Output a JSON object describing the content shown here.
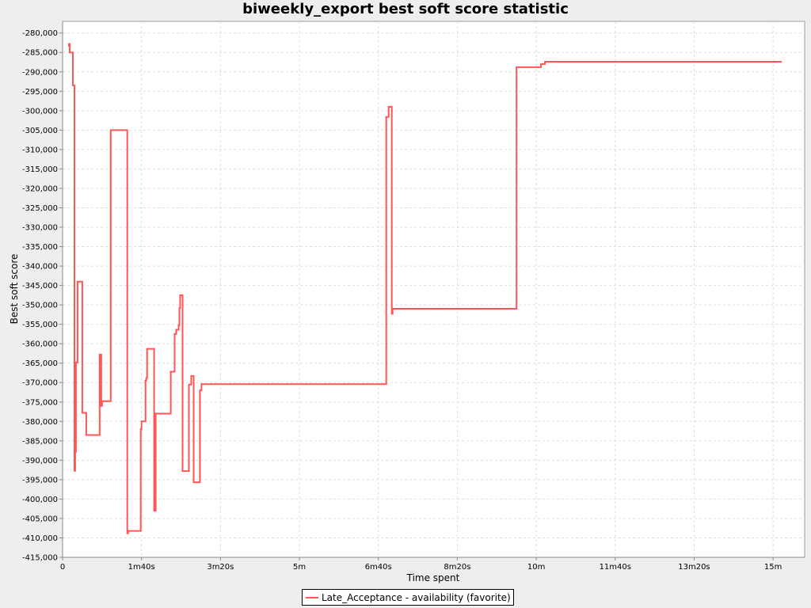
{
  "chart_data": {
    "type": "line",
    "title": "biweekly_export best soft score statistic",
    "xlabel": "Time spent",
    "ylabel": "Best soft score",
    "x_unit": "seconds",
    "xlim": [
      0,
      940
    ],
    "ylim": [
      -415000,
      -277000
    ],
    "x_ticks": [
      {
        "value": 0,
        "label": "0"
      },
      {
        "value": 100,
        "label": "1m40s"
      },
      {
        "value": 200,
        "label": "3m20s"
      },
      {
        "value": 300,
        "label": "5m"
      },
      {
        "value": 400,
        "label": "6m40s"
      },
      {
        "value": 500,
        "label": "8m20s"
      },
      {
        "value": 600,
        "label": "10m"
      },
      {
        "value": 700,
        "label": "11m40s"
      },
      {
        "value": 800,
        "label": "13m20s"
      },
      {
        "value": 900,
        "label": "15m"
      }
    ],
    "y_ticks": [
      {
        "value": -280000,
        "label": "-280,000"
      },
      {
        "value": -285000,
        "label": "-285,000"
      },
      {
        "value": -290000,
        "label": "-290,000"
      },
      {
        "value": -295000,
        "label": "-295,000"
      },
      {
        "value": -300000,
        "label": "-300,000"
      },
      {
        "value": -305000,
        "label": "-305,000"
      },
      {
        "value": -310000,
        "label": "-310,000"
      },
      {
        "value": -315000,
        "label": "-315,000"
      },
      {
        "value": -320000,
        "label": "-320,000"
      },
      {
        "value": -325000,
        "label": "-325,000"
      },
      {
        "value": -330000,
        "label": "-330,000"
      },
      {
        "value": -335000,
        "label": "-335,000"
      },
      {
        "value": -340000,
        "label": "-340,000"
      },
      {
        "value": -345000,
        "label": "-345,000"
      },
      {
        "value": -350000,
        "label": "-350,000"
      },
      {
        "value": -355000,
        "label": "-355,000"
      },
      {
        "value": -360000,
        "label": "-360,000"
      },
      {
        "value": -365000,
        "label": "-365,000"
      },
      {
        "value": -370000,
        "label": "-370,000"
      },
      {
        "value": -375000,
        "label": "-375,000"
      },
      {
        "value": -380000,
        "label": "-380,000"
      },
      {
        "value": -385000,
        "label": "-385,000"
      },
      {
        "value": -390000,
        "label": "-390,000"
      },
      {
        "value": -395000,
        "label": "-395,000"
      },
      {
        "value": -400000,
        "label": "-400,000"
      },
      {
        "value": -405000,
        "label": "-405,000"
      },
      {
        "value": -410000,
        "label": "-410,000"
      },
      {
        "value": -415000,
        "label": "-415,000"
      }
    ],
    "grid": true,
    "legend_position": "bottom-center",
    "series": [
      {
        "name": "Late_Acceptance - availability (favorite)",
        "color": "#ff5555",
        "step": true,
        "points": [
          [
            8,
            -283500
          ],
          [
            8,
            -282800
          ],
          [
            9,
            -282800
          ],
          [
            9,
            -285000
          ],
          [
            13,
            -285000
          ],
          [
            13,
            -293500
          ],
          [
            15,
            -293500
          ],
          [
            15,
            -392700
          ],
          [
            16,
            -392700
          ],
          [
            16,
            -387800
          ],
          [
            17,
            -387800
          ],
          [
            17,
            -364800
          ],
          [
            19,
            -364800
          ],
          [
            19,
            -344000
          ],
          [
            25,
            -344000
          ],
          [
            25,
            -377800
          ],
          [
            30,
            -377800
          ],
          [
            30,
            -383500
          ],
          [
            47,
            -383500
          ],
          [
            47,
            -362800
          ],
          [
            49,
            -362800
          ],
          [
            49,
            -376000
          ],
          [
            50,
            -376000
          ],
          [
            50,
            -374800
          ],
          [
            61,
            -374800
          ],
          [
            61,
            -305000
          ],
          [
            82,
            -305000
          ],
          [
            82,
            -408800
          ],
          [
            83,
            -408800
          ],
          [
            83,
            -408200
          ],
          [
            99,
            -408200
          ],
          [
            99,
            -382000
          ],
          [
            100,
            -382000
          ],
          [
            100,
            -380000
          ],
          [
            105,
            -380000
          ],
          [
            105,
            -369500
          ],
          [
            106,
            -369500
          ],
          [
            106,
            -368800
          ],
          [
            107,
            -368800
          ],
          [
            107,
            -361300
          ],
          [
            116,
            -361300
          ],
          [
            116,
            -403000
          ],
          [
            118,
            -403000
          ],
          [
            118,
            -378000
          ],
          [
            137,
            -378000
          ],
          [
            137,
            -367200
          ],
          [
            142,
            -367200
          ],
          [
            142,
            -357500
          ],
          [
            144,
            -357500
          ],
          [
            144,
            -356400
          ],
          [
            147,
            -356400
          ],
          [
            147,
            -355300
          ],
          [
            148,
            -355300
          ],
          [
            148,
            -350800
          ],
          [
            149,
            -350800
          ],
          [
            149,
            -347500
          ],
          [
            152,
            -347500
          ],
          [
            152,
            -392800
          ],
          [
            160,
            -392800
          ],
          [
            160,
            -370500
          ],
          [
            163,
            -370500
          ],
          [
            163,
            -368300
          ],
          [
            166,
            -368300
          ],
          [
            166,
            -395700
          ],
          [
            174,
            -395700
          ],
          [
            174,
            -372000
          ],
          [
            176,
            -372000
          ],
          [
            176,
            -370400
          ],
          [
            410,
            -370400
          ],
          [
            410,
            -301600
          ],
          [
            413,
            -301600
          ],
          [
            413,
            -299000
          ],
          [
            417,
            -299000
          ],
          [
            417,
            -352300
          ],
          [
            418,
            -352300
          ],
          [
            418,
            -351000
          ],
          [
            575,
            -351000
          ],
          [
            575,
            -288800
          ],
          [
            606,
            -288800
          ],
          [
            606,
            -288000
          ],
          [
            611,
            -288000
          ],
          [
            611,
            -287400
          ],
          [
            911,
            -287400
          ]
        ]
      }
    ]
  }
}
